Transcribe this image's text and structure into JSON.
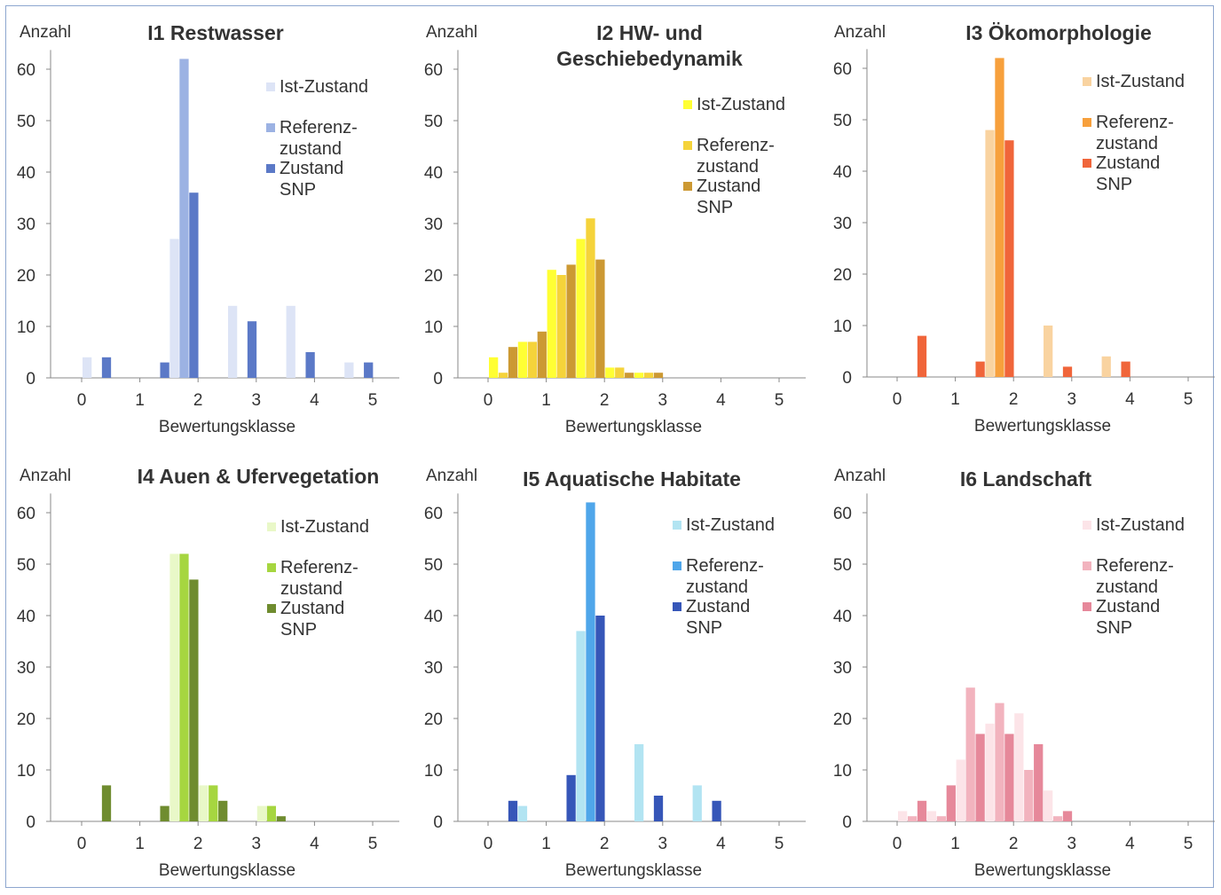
{
  "chart_data": [
    {
      "type": "bar",
      "title": "I1 Restwasser",
      "ylabel": "Anzahl",
      "xlabel": "Bewertungsklasse",
      "ylim": [
        0,
        62
      ],
      "yticks": [
        0,
        10,
        20,
        30,
        40,
        50,
        60
      ],
      "xticks": [
        "0",
        "1",
        "2",
        "3",
        "4",
        "5"
      ],
      "legend": [
        "Ist-Zustand",
        "Referenz-\nzustand",
        "Zustand\nSNP"
      ],
      "colors": [
        "#dde4f6",
        "#9cb2e3",
        "#5b79c7"
      ],
      "categories": [
        "0–0.5",
        "0.5–1",
        "1–1.5",
        "1.5–2",
        "2–2.5",
        "2.5–3",
        "3–3.5",
        "3.5–4",
        "4–4.5",
        "4.5–5"
      ],
      "series": [
        {
          "name": "Ist-Zustand",
          "values": [
            4,
            0,
            0,
            27,
            0,
            14,
            0,
            14,
            0,
            3
          ]
        },
        {
          "name": "Referenz-zustand",
          "values": [
            0,
            0,
            0,
            62,
            0,
            0,
            0,
            0,
            0,
            0
          ]
        },
        {
          "name": "Zustand SNP",
          "values": [
            4,
            0,
            3,
            36,
            0,
            11,
            0,
            5,
            0,
            3
          ]
        }
      ]
    },
    {
      "type": "bar",
      "title": "I2 HW- und\nGeschiebedynamik",
      "ylabel": "Anzahl",
      "xlabel": "Bewertungsklasse",
      "ylim": [
        0,
        62
      ],
      "yticks": [
        0,
        10,
        20,
        30,
        40,
        50,
        60
      ],
      "xticks": [
        "0",
        "1",
        "2",
        "3",
        "4",
        "5"
      ],
      "legend": [
        "Ist-Zustand",
        "Referenz-\nzustand",
        "Zustand\nSNP"
      ],
      "colors": [
        "#ffff33",
        "#f5d33a",
        "#cc9933"
      ],
      "categories": [
        "0–0.5",
        "0.5–1",
        "1–1.5",
        "1.5–2",
        "2–2.5",
        "2.5–3",
        "3–3.5",
        "3.5–4",
        "4–4.5",
        "4.5–5"
      ],
      "series": [
        {
          "name": "Ist-Zustand",
          "values": [
            4,
            7,
            21,
            27,
            2,
            1,
            0,
            0,
            0,
            0
          ]
        },
        {
          "name": "Referenz-zustand",
          "values": [
            1,
            7,
            20,
            31,
            2,
            1,
            0,
            0,
            0,
            0
          ]
        },
        {
          "name": "Zustand SNP",
          "values": [
            6,
            9,
            22,
            23,
            1,
            1,
            0,
            0,
            0,
            0
          ]
        }
      ]
    },
    {
      "type": "bar",
      "title": "I3 Ökomorphologie",
      "ylabel": "Anzahl",
      "xlabel": "Bewertungsklasse",
      "ylim": [
        0,
        62
      ],
      "yticks": [
        0,
        10,
        20,
        30,
        40,
        50,
        60
      ],
      "xticks": [
        "0",
        "1",
        "2",
        "3",
        "4",
        "5"
      ],
      "legend": [
        "Ist-Zustand",
        "Referenz-\nzustand",
        "Zustand\nSNP"
      ],
      "colors": [
        "#f9d3a0",
        "#f7a03c",
        "#f0653a"
      ],
      "categories": [
        "0–0.5",
        "0.5–1",
        "1–1.5",
        "1.5–2",
        "2–2.5",
        "2.5–3",
        "3–3.5",
        "3.5–4",
        "4–4.5",
        "4.5–5"
      ],
      "series": [
        {
          "name": "Ist-Zustand",
          "values": [
            0,
            0,
            0,
            48,
            0,
            10,
            0,
            4,
            0,
            0
          ]
        },
        {
          "name": "Referenz-zustand",
          "values": [
            0,
            0,
            0,
            62,
            0,
            0,
            0,
            0,
            0,
            0
          ]
        },
        {
          "name": "Zustand SNP",
          "values": [
            8,
            0,
            3,
            46,
            0,
            2,
            0,
            3,
            0,
            0
          ]
        }
      ]
    },
    {
      "type": "bar",
      "title": "I4 Auen & Ufervegetation",
      "ylabel": "Anzahl",
      "xlabel": "Bewertungsklasse",
      "ylim": [
        0,
        62
      ],
      "yticks": [
        0,
        10,
        20,
        30,
        40,
        50,
        60
      ],
      "xticks": [
        "0",
        "1",
        "2",
        "3",
        "4",
        "5"
      ],
      "legend": [
        "Ist-Zustand",
        "Referenz-\nzustand",
        "Zustand\nSNP"
      ],
      "colors": [
        "#e9f8c8",
        "#a6d640",
        "#6f8c2f"
      ],
      "categories": [
        "0–0.5",
        "0.5–1",
        "1–1.5",
        "1.5–2",
        "2–2.5",
        "2.5–3",
        "3–3.5",
        "3.5–4",
        "4–4.5",
        "4.5–5"
      ],
      "series": [
        {
          "name": "Ist-Zustand",
          "values": [
            0,
            0,
            0,
            52,
            7,
            0,
            3,
            0,
            0,
            0
          ]
        },
        {
          "name": "Referenz-zustand",
          "values": [
            0,
            0,
            0,
            52,
            7,
            0,
            3,
            0,
            0,
            0
          ]
        },
        {
          "name": "Zustand SNP",
          "values": [
            7,
            0,
            3,
            47,
            4,
            0,
            1,
            0,
            0,
            0
          ]
        }
      ]
    },
    {
      "type": "bar",
      "title": "I5 Aquatische Habitate",
      "ylabel": "Anzahl",
      "xlabel": "Bewertungsklasse",
      "ylim": [
        0,
        62
      ],
      "yticks": [
        0,
        10,
        20,
        30,
        40,
        50,
        60
      ],
      "xticks": [
        "0",
        "1",
        "2",
        "3",
        "4",
        "5"
      ],
      "legend": [
        "Ist-Zustand",
        "Referenz-\nzustand",
        "Zustand\nSNP"
      ],
      "colors": [
        "#b2e4f2",
        "#4fa6ea",
        "#3656b8"
      ],
      "categories": [
        "0–0.5",
        "0.5–1",
        "1–1.5",
        "1.5–2",
        "2–2.5",
        "2.5–3",
        "3–3.5",
        "3.5–4",
        "4–4.5",
        "4.5–5"
      ],
      "series": [
        {
          "name": "Ist-Zustand",
          "values": [
            0,
            3,
            0,
            37,
            0,
            15,
            0,
            7,
            0,
            0
          ]
        },
        {
          "name": "Referenz-zustand",
          "values": [
            0,
            0,
            0,
            62,
            0,
            0,
            0,
            0,
            0,
            0
          ]
        },
        {
          "name": "Zustand SNP",
          "values": [
            4,
            0,
            9,
            40,
            0,
            5,
            0,
            4,
            0,
            0
          ]
        }
      ]
    },
    {
      "type": "bar",
      "title": "I6 Landschaft",
      "ylabel": "Anzahl",
      "xlabel": "Bewertungsklasse",
      "ylim": [
        0,
        62
      ],
      "yticks": [
        0,
        10,
        20,
        30,
        40,
        50,
        60
      ],
      "xticks": [
        "0",
        "1",
        "2",
        "3",
        "4",
        "5"
      ],
      "legend": [
        "Ist-Zustand",
        "Referenz-\nzustand",
        "Zustand\nSNP"
      ],
      "colors": [
        "#fce4e8",
        "#f2b3be",
        "#e6889a"
      ],
      "categories": [
        "0–0.5",
        "0.5–1",
        "1–1.5",
        "1.5–2",
        "2–2.5",
        "2.5–3",
        "3–3.5",
        "3.5–4",
        "4–4.5",
        "4.5–5"
      ],
      "series": [
        {
          "name": "Ist-Zustand",
          "values": [
            2,
            2,
            12,
            19,
            21,
            6,
            0,
            0,
            0,
            0
          ]
        },
        {
          "name": "Referenz-zustand",
          "values": [
            1,
            1,
            26,
            23,
            10,
            1,
            0,
            0,
            0,
            0
          ]
        },
        {
          "name": "Zustand SNP",
          "values": [
            4,
            7,
            17,
            17,
            15,
            2,
            0,
            0,
            0,
            0
          ]
        }
      ]
    }
  ]
}
